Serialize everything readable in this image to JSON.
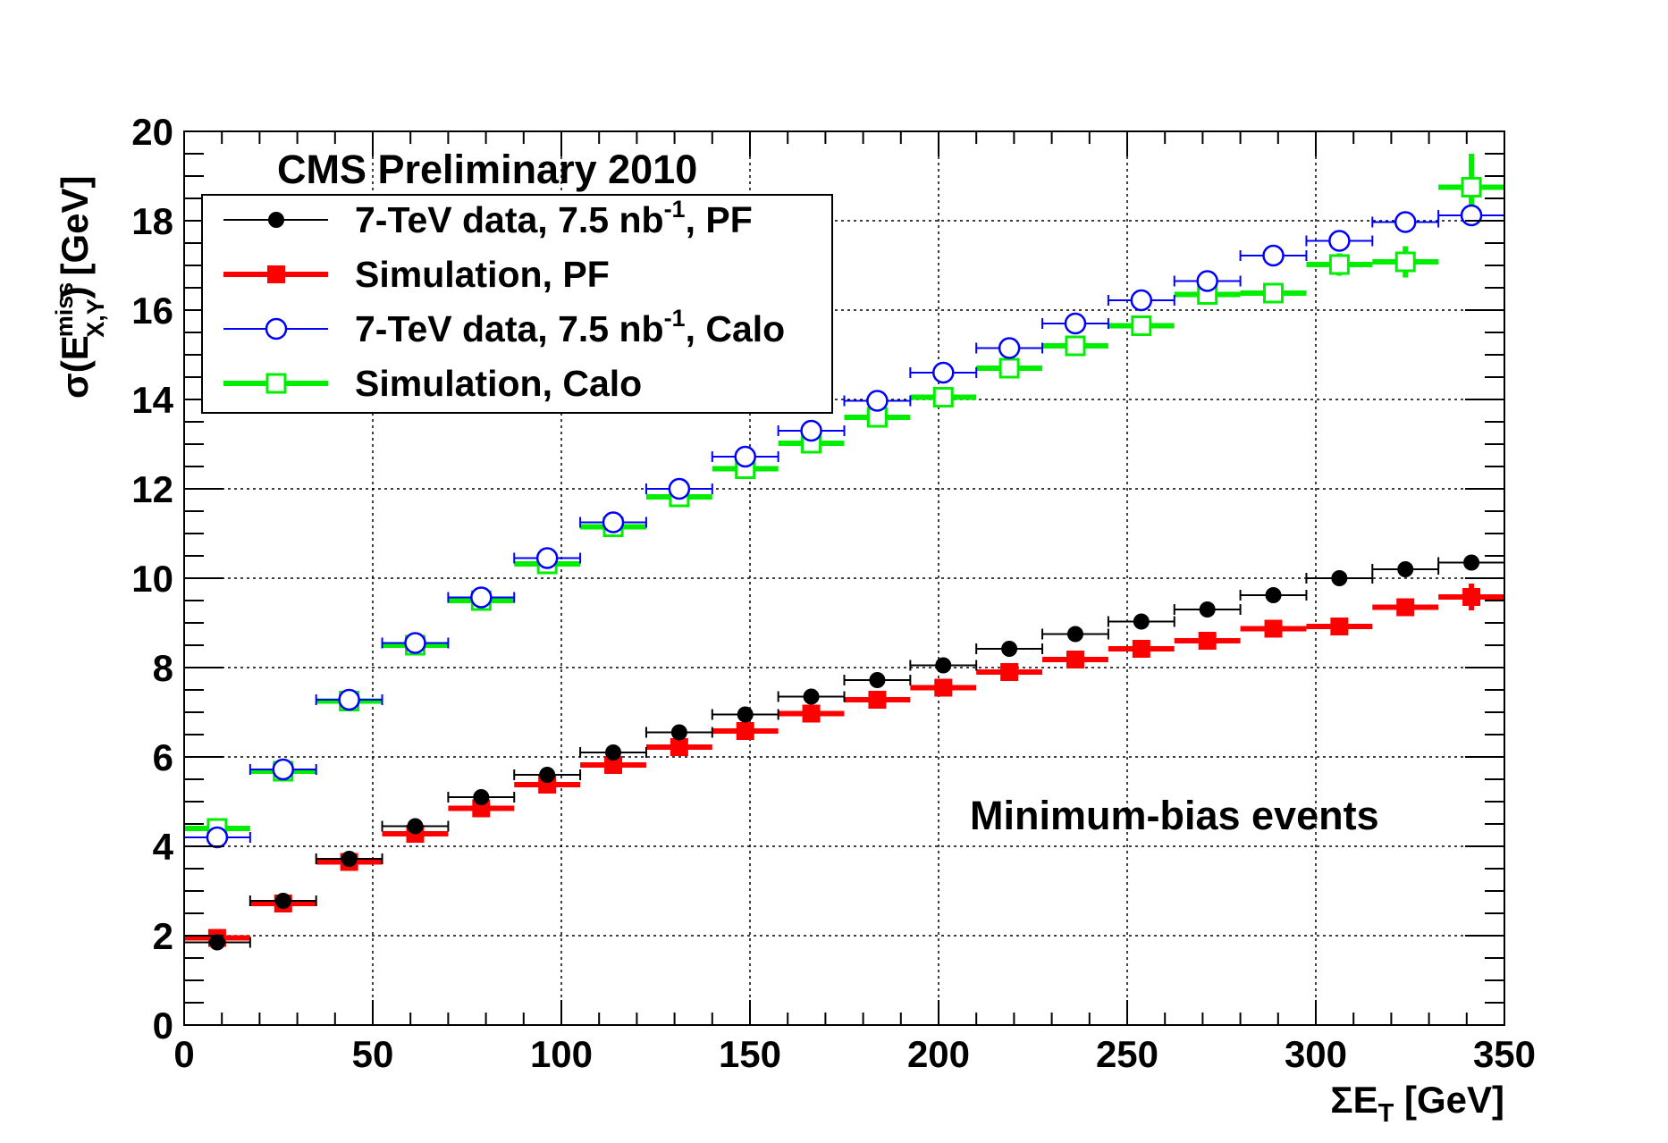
{
  "chart_data": {
    "type": "scatter",
    "title": "CMS Preliminary 2010",
    "annotation": "Minimum-bias events",
    "xlabel": {
      "main": "ΣE",
      "sub": "T",
      "rest": " [GeV]"
    },
    "ylabel": {
      "pre": "σ(E",
      "sup": "miss",
      "sub": "X,Y",
      "post": ") [GeV]"
    },
    "xlim": [
      0,
      350
    ],
    "ylim": [
      0,
      20
    ],
    "xticks": [
      0,
      50,
      100,
      150,
      200,
      250,
      300,
      350
    ],
    "yticks": [
      0,
      2,
      4,
      6,
      8,
      10,
      12,
      14,
      16,
      18,
      20
    ],
    "grid": true,
    "legend_position": "top-left",
    "bin_half_width": 8.75,
    "x": [
      8.75,
      26.25,
      43.75,
      61.25,
      78.75,
      96.25,
      113.75,
      131.25,
      148.75,
      166.25,
      183.75,
      201.25,
      218.75,
      236.25,
      253.75,
      271.25,
      288.75,
      306.25,
      323.75,
      341.25
    ],
    "series": [
      {
        "name": "Simulation, PF",
        "legend": {
          "text": "Simulation, PF"
        },
        "color": "#ff0000",
        "marker": "filled-square",
        "style": "thick",
        "values": [
          1.95,
          2.72,
          3.65,
          4.28,
          4.85,
          5.38,
          5.82,
          6.22,
          6.58,
          6.97,
          7.28,
          7.55,
          7.9,
          8.18,
          8.42,
          8.6,
          8.87,
          8.92,
          9.35,
          9.58
        ],
        "yerr": [
          0,
          0,
          0,
          0,
          0,
          0,
          0,
          0,
          0,
          0,
          0,
          0,
          0,
          0,
          0,
          0,
          0,
          0,
          0.15,
          0.3
        ]
      },
      {
        "name": "7-TeV data, 7.5 nb-1, PF",
        "legend": {
          "text": "7-TeV data, 7.5 nb",
          "sup": "-1",
          "rest": ", PF"
        },
        "color": "#000000",
        "marker": "filled-circle",
        "style": "thin",
        "values": [
          1.85,
          2.78,
          3.72,
          4.45,
          5.1,
          5.6,
          6.1,
          6.55,
          6.95,
          7.35,
          7.72,
          8.05,
          8.42,
          8.75,
          9.03,
          9.3,
          9.62,
          10.0,
          10.2,
          10.35
        ],
        "yerr": [
          0,
          0,
          0,
          0,
          0,
          0,
          0,
          0,
          0,
          0,
          0,
          0,
          0,
          0,
          0,
          0,
          0,
          0,
          0,
          0
        ]
      },
      {
        "name": "Simulation, Calo",
        "legend": {
          "text": "Simulation, Calo"
        },
        "color": "#00ee00",
        "marker": "open-square",
        "style": "thick",
        "values": [
          4.4,
          5.68,
          7.25,
          8.5,
          9.5,
          10.32,
          11.15,
          11.82,
          12.45,
          13.02,
          13.6,
          14.05,
          14.7,
          15.2,
          15.65,
          16.35,
          16.38,
          17.02,
          17.08,
          18.75
        ],
        "yerr": [
          0,
          0,
          0,
          0,
          0,
          0,
          0,
          0,
          0,
          0,
          0,
          0,
          0,
          0,
          0,
          0,
          0,
          0.25,
          0.35,
          0.75
        ]
      },
      {
        "name": "7-TeV data, 7.5 nb-1, Calo",
        "legend": {
          "text": "7-TeV data, 7.5 nb",
          "sup": "-1",
          "rest": ", Calo"
        },
        "color": "#0000ff",
        "marker": "open-circle",
        "style": "thin",
        "values": [
          4.2,
          5.72,
          7.28,
          8.55,
          9.57,
          10.45,
          11.25,
          12.0,
          12.72,
          13.3,
          13.97,
          14.6,
          15.15,
          15.7,
          16.22,
          16.65,
          17.22,
          17.55,
          17.97,
          18.12
        ],
        "yerr": [
          0,
          0,
          0,
          0,
          0,
          0,
          0,
          0,
          0,
          0,
          0,
          0,
          0,
          0,
          0,
          0,
          0,
          0,
          0,
          0
        ]
      }
    ],
    "legend_order": [
      1,
      0,
      3,
      2
    ]
  }
}
